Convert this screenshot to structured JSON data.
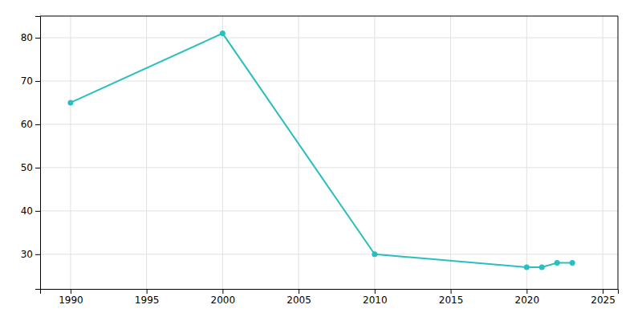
{
  "chart_data": {
    "type": "line",
    "x": [
      1990,
      2000,
      2010,
      2020,
      2021,
      2022,
      2023
    ],
    "values": [
      65,
      81,
      30,
      27,
      27,
      28,
      28
    ],
    "color": "#2abfbf",
    "marker": "circle",
    "xlim": [
      1988,
      2026
    ],
    "ylim": [
      22,
      85
    ],
    "xticks": [
      1990,
      1995,
      2000,
      2005,
      2010,
      2015,
      2020,
      2025
    ],
    "yticks": [
      30,
      40,
      50,
      60,
      70,
      80
    ],
    "grid": true
  }
}
